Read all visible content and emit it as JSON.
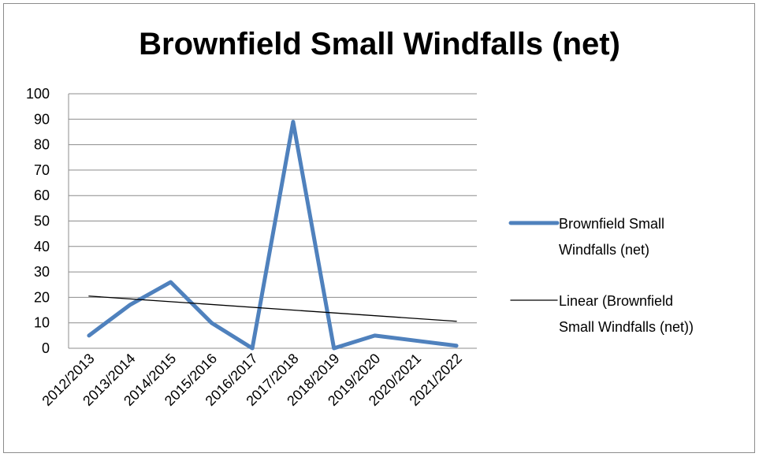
{
  "chart_data": {
    "type": "line",
    "title": "Brownfield Small Windfalls (net)",
    "xlabel": "",
    "ylabel": "",
    "categories": [
      "2012/2013",
      "2013/2014",
      "2014/2015",
      "2015/2016",
      "2016/2017",
      "2017/2018",
      "2018/2019",
      "2019/2020",
      "2020/2021",
      "2021/2022"
    ],
    "ylim": [
      0,
      100
    ],
    "yticks": [
      "0",
      "10",
      "20",
      "30",
      "40",
      "50",
      "60",
      "70",
      "80",
      "90",
      "100"
    ],
    "grid": true,
    "legend_position": "right",
    "series": [
      {
        "name": "Brownfield Small Windfalls (net)",
        "legend_lines": [
          "Brownfield Small",
          "Windfalls (net)"
        ],
        "color": "#4f81bd",
        "values": [
          5,
          17,
          26,
          10,
          0,
          89,
          0,
          5,
          3,
          1
        ]
      },
      {
        "name": "Linear (Brownfield Small Windfalls (net))",
        "legend_lines": [
          "Linear (Brownfield",
          "Small Windfalls (net))"
        ],
        "color": "#000000",
        "trendline": "linear",
        "values": [
          20.5,
          19.4,
          18.3,
          17.2,
          16.1,
          15.0,
          13.9,
          12.8,
          11.7,
          10.6
        ]
      }
    ]
  }
}
